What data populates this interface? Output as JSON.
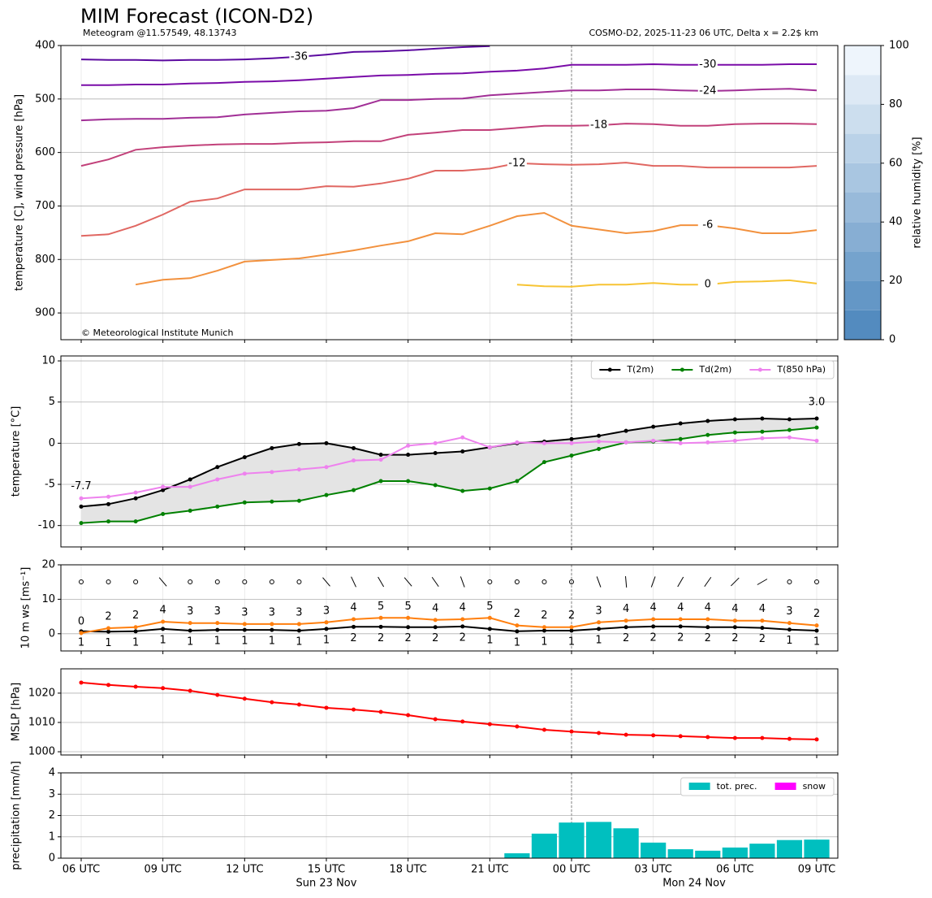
{
  "chart_data": [
    {
      "type": "contour",
      "title": "MIM Forecast (ICON-D2)",
      "subtitle": "Meteogram @11.57549, 48.13743",
      "info": "COSMO-D2, 2025-11-23 06 UTC, Delta x = 2.2$ km",
      "copyright": "© Meteorological Institute Munich",
      "ylabel": "temperature [C], wind pressure [hPa]",
      "ylim": [
        950,
        400
      ],
      "yticks": [
        400,
        500,
        600,
        700,
        800,
        900
      ],
      "grid": true,
      "series": [
        {
          "name": "-36",
          "color": "#5c0aa0",
          "values": [
            426,
            427,
            427,
            428,
            427,
            427,
            426,
            424,
            421,
            417,
            412,
            411,
            409,
            406,
            403,
            401,
            null,
            null,
            null,
            null,
            null,
            null,
            null,
            null,
            null,
            null,
            null,
            null
          ]
        },
        {
          "name": "-30",
          "color": "#7a0ca8",
          "values": [
            474,
            474,
            473,
            473,
            471,
            470,
            468,
            467,
            465,
            462,
            459,
            456,
            455,
            453,
            452,
            449,
            447,
            443,
            436,
            436,
            436,
            435,
            436,
            436,
            436,
            436,
            435,
            435
          ]
        },
        {
          "name": "-24",
          "color": "#a12f96",
          "values": [
            540,
            538,
            537,
            537,
            535,
            534,
            529,
            526,
            523,
            522,
            517,
            502,
            502,
            500,
            499,
            493,
            490,
            487,
            484,
            484,
            482,
            482,
            484,
            485,
            484,
            482,
            481,
            484
          ]
        },
        {
          "name": "-18",
          "color": "#c2417a",
          "values": [
            625,
            613,
            595,
            590,
            587,
            585,
            584,
            584,
            582,
            581,
            579,
            579,
            567,
            563,
            558,
            558,
            554,
            550,
            550,
            549,
            546,
            547,
            550,
            550,
            547,
            546,
            546,
            547
          ]
        },
        {
          "name": "-12",
          "color": "#e06762",
          "values": [
            756,
            753,
            737,
            716,
            692,
            686,
            669,
            669,
            669,
            663,
            664,
            658,
            649,
            634,
            634,
            630,
            620,
            622,
            623,
            622,
            619,
            625,
            625,
            628,
            628,
            628,
            628,
            625
          ]
        },
        {
          "name": "-6",
          "color": "#f2913e",
          "values": [
            null,
            null,
            847,
            838,
            835,
            821,
            804,
            801,
            798,
            791,
            783,
            774,
            766,
            751,
            753,
            737,
            719,
            713,
            737,
            744,
            751,
            747,
            736,
            736,
            742,
            751,
            751,
            745
          ]
        },
        {
          "name": "0",
          "color": "#f7c433",
          "values": [
            null,
            null,
            null,
            null,
            null,
            null,
            null,
            null,
            null,
            null,
            null,
            null,
            null,
            null,
            null,
            null,
            847,
            850,
            851,
            847,
            847,
            844,
            847,
            847,
            842,
            841,
            839,
            845
          ]
        }
      ],
      "colorbar": {
        "label": "relative humidity [%]",
        "lim": [
          0,
          100
        ],
        "ticks": [
          0,
          20,
          40,
          60,
          80,
          100
        ]
      }
    },
    {
      "type": "line",
      "ylabel": "temperature [°C]",
      "ylim": [
        -12.6,
        10.6
      ],
      "yticks": [
        -10,
        -5,
        0,
        5,
        10
      ],
      "grid": true,
      "legend": "upper right",
      "fill_between": true,
      "annotations": [
        {
          "text": "-7.7",
          "color": "#0000ff"
        },
        {
          "text": "3.0",
          "color": "#ff0000"
        }
      ],
      "series": [
        {
          "name": "T(2m)",
          "color": "#000000",
          "values": [
            -7.7,
            -7.4,
            -6.7,
            -5.7,
            -4.4,
            -2.9,
            -1.7,
            -0.6,
            -0.1,
            0.0,
            -0.6,
            -1.4,
            -1.4,
            -1.2,
            -1.0,
            -0.5,
            0.0,
            0.2,
            0.5,
            0.9,
            1.5,
            2.0,
            2.4,
            2.7,
            2.9,
            3.0,
            2.9,
            3.0
          ]
        },
        {
          "name": "Td(2m)",
          "color": "#008000",
          "values": [
            -9.7,
            -9.5,
            -9.5,
            -8.6,
            -8.2,
            -7.7,
            -7.2,
            -7.1,
            -7.0,
            -6.3,
            -5.7,
            -4.6,
            -4.6,
            -5.1,
            -5.8,
            -5.5,
            -4.6,
            -2.3,
            -1.5,
            -0.7,
            0.1,
            0.2,
            0.5,
            1.0,
            1.3,
            1.4,
            1.6,
            1.9
          ]
        },
        {
          "name": "T(850 hPa)",
          "color": "#ee82ee",
          "values": [
            -6.7,
            -6.5,
            -6.0,
            -5.3,
            -5.3,
            -4.4,
            -3.7,
            -3.5,
            -3.2,
            -2.9,
            -2.1,
            -2.0,
            -0.3,
            0.0,
            0.7,
            -0.5,
            0.1,
            0.0,
            0.0,
            0.2,
            0.1,
            0.3,
            0.0,
            0.1,
            0.3,
            0.6,
            0.7,
            0.3
          ]
        }
      ]
    },
    {
      "type": "line",
      "ylabel": "10 m ws [ms⁻¹]",
      "ylim": [
        -5,
        20
      ],
      "yticks": [
        0,
        10,
        20
      ],
      "grid": true,
      "wind_direction": [
        null,
        null,
        null,
        320,
        null,
        null,
        null,
        null,
        null,
        320,
        335,
        330,
        320,
        325,
        340,
        null,
        null,
        null,
        null,
        340,
        355,
        20,
        30,
        35,
        45,
        60,
        null,
        null
      ],
      "series": [
        {
          "color": "#000000",
          "values": [
            0.7,
            0.6,
            0.7,
            1.4,
            0.9,
            1.1,
            1.1,
            1.1,
            0.9,
            1.4,
            2.0,
            2.0,
            1.9,
            1.9,
            2.1,
            1.4,
            0.7,
            0.9,
            0.9,
            1.4,
            1.9,
            2.1,
            2.1,
            1.9,
            1.9,
            1.7,
            1.2,
            0.9
          ],
          "value_labels": [
            "1",
            "1",
            "1",
            "1",
            "1",
            "1",
            "1",
            "1",
            "1",
            "1",
            "2",
            "2",
            "2",
            "2",
            "2",
            "1",
            "1",
            "1",
            "1",
            "1",
            "2",
            "2",
            "2",
            "2",
            "2",
            "2",
            "1",
            "1"
          ]
        },
        {
          "color": "#ff7f0e",
          "values": [
            0.2,
            1.6,
            1.9,
            3.5,
            3.1,
            3.1,
            2.8,
            2.8,
            2.8,
            3.3,
            4.2,
            4.6,
            4.6,
            4.0,
            4.2,
            4.6,
            2.4,
            1.9,
            1.9,
            3.3,
            3.8,
            4.2,
            4.2,
            4.2,
            3.8,
            3.8,
            3.1,
            2.4
          ],
          "value_labels": [
            "0",
            "2",
            "2",
            "4",
            "3",
            "3",
            "3",
            "3",
            "3",
            "3",
            "4",
            "5",
            "5",
            "4",
            "4",
            "5",
            "2",
            "2",
            "2",
            "3",
            "4",
            "4",
            "4",
            "4",
            "4",
            "4",
            "3",
            "2"
          ]
        }
      ]
    },
    {
      "type": "line",
      "ylabel": "MSLP [hPa]",
      "ylim": [
        998.9,
        1028.3
      ],
      "yticks": [
        1000,
        1010,
        1020
      ],
      "grid": true,
      "series": [
        {
          "color": "#ff0000",
          "values": [
            1023.6,
            1022.8,
            1022.2,
            1021.7,
            1020.8,
            1019.4,
            1018.1,
            1016.9,
            1016.1,
            1015.0,
            1014.4,
            1013.6,
            1012.5,
            1011.1,
            1010.3,
            1009.4,
            1008.6,
            1007.5,
            1006.9,
            1006.4,
            1005.8,
            1005.6,
            1005.3,
            1005.0,
            1004.7,
            1004.7,
            1004.4,
            1004.2
          ]
        }
      ]
    },
    {
      "type": "bar",
      "ylabel": "precipitation [mm/h]",
      "ylim": [
        0,
        4
      ],
      "yticks": [
        0,
        1,
        2,
        3,
        4
      ],
      "grid": true,
      "legend": "upper right",
      "categories": [
        "06 UTC",
        null,
        null,
        "09 UTC",
        null,
        null,
        "12 UTC",
        null,
        null,
        "15 UTC",
        null,
        null,
        "18 UTC",
        null,
        null,
        "21 UTC",
        null,
        null,
        "00 UTC",
        null,
        null,
        "03 UTC",
        null,
        null,
        "06 UTC",
        null,
        null,
        "09 UTC"
      ],
      "date_labels": [
        "Sun 23 Nov",
        "Mon 24 Nov"
      ],
      "series": [
        {
          "name": "tot. prec.",
          "color": "#00bfbf",
          "values": [
            0,
            0,
            0,
            0,
            0,
            0,
            0,
            0,
            0,
            0,
            0,
            0,
            0,
            0,
            0,
            0,
            0.23,
            1.15,
            1.67,
            1.7,
            1.4,
            0.73,
            0.42,
            0.35,
            0.5,
            0.68,
            0.85,
            0.87
          ]
        },
        {
          "name": "snow",
          "color": "#ff00ff",
          "values": [
            0,
            0,
            0,
            0,
            0,
            0,
            0,
            0,
            0,
            0,
            0,
            0,
            0,
            0,
            0,
            0,
            0,
            0,
            0,
            0,
            0,
            0,
            0,
            0,
            0,
            0,
            0,
            0
          ]
        }
      ]
    }
  ]
}
